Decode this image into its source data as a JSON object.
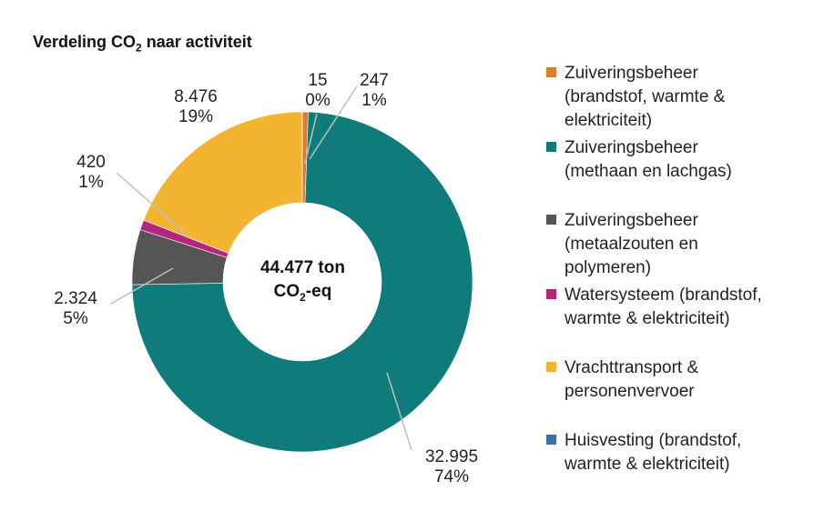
{
  "chart_data": {
    "type": "pie",
    "title_prefix": "Verdeling CO",
    "title_sub": "2",
    "title_suffix": " naar activiteit",
    "center_line1": "44.477 ton",
    "center_line2_prefix": "CO",
    "center_line2_sub": "2",
    "center_line2_suffix": "-eq",
    "slices": [
      {
        "name": "Zuiveringsbeheer (brandstof, warmte & elektriciteit)",
        "value_label": "247",
        "percent_label": "1%",
        "value": 247,
        "color": "#e07b29"
      },
      {
        "name": "Zuiveringsbeheer (methaan en lachgas)",
        "value_label": "32.995",
        "percent_label": "74%",
        "value": 32995,
        "color": "#0f7b7b"
      },
      {
        "name": "Zuiveringsbeheer (metaalzouten en polymeren)",
        "value_label": "2.324",
        "percent_label": "5%",
        "value": 2324,
        "color": "#555555"
      },
      {
        "name": "Watersysteem (brandstof, warmte & elektriciteit)",
        "value_label": "420",
        "percent_label": "1%",
        "value": 420,
        "color": "#b5247e"
      },
      {
        "name": "Vrachttransport & personenvervoer",
        "value_label": "8.476",
        "percent_label": "19%",
        "value": 8476,
        "color": "#f2b431"
      },
      {
        "name": "Huisvesting (brandstof, warmte & elektriciteit)",
        "value_label": "15",
        "percent_label": "0%",
        "value": 15,
        "color": "#3c6ea8"
      }
    ]
  },
  "legend": [
    {
      "lines": [
        "Zuiveringsbeheer",
        "(brandstof, warmte &",
        "elektriciteit)"
      ],
      "color": "#e07b29"
    },
    {
      "lines": [
        "Zuiveringsbeheer",
        "(methaan en lachgas)"
      ],
      "color": "#0f7b7b"
    },
    {
      "lines": [
        "Zuiveringsbeheer",
        "(metaalzouten en",
        "polymeren)"
      ],
      "color": "#555555"
    },
    {
      "lines": [
        "Watersysteem (brandstof,",
        "warmte & elektriciteit)"
      ],
      "color": "#b5247e"
    },
    {
      "lines": [
        "Vrachttransport &",
        "personenvervoer"
      ],
      "color": "#f2b431"
    },
    {
      "lines": [
        "Huisvesting (brandstof,",
        "warmte & elektriciteit)"
      ],
      "color": "#3c6ea8"
    }
  ]
}
